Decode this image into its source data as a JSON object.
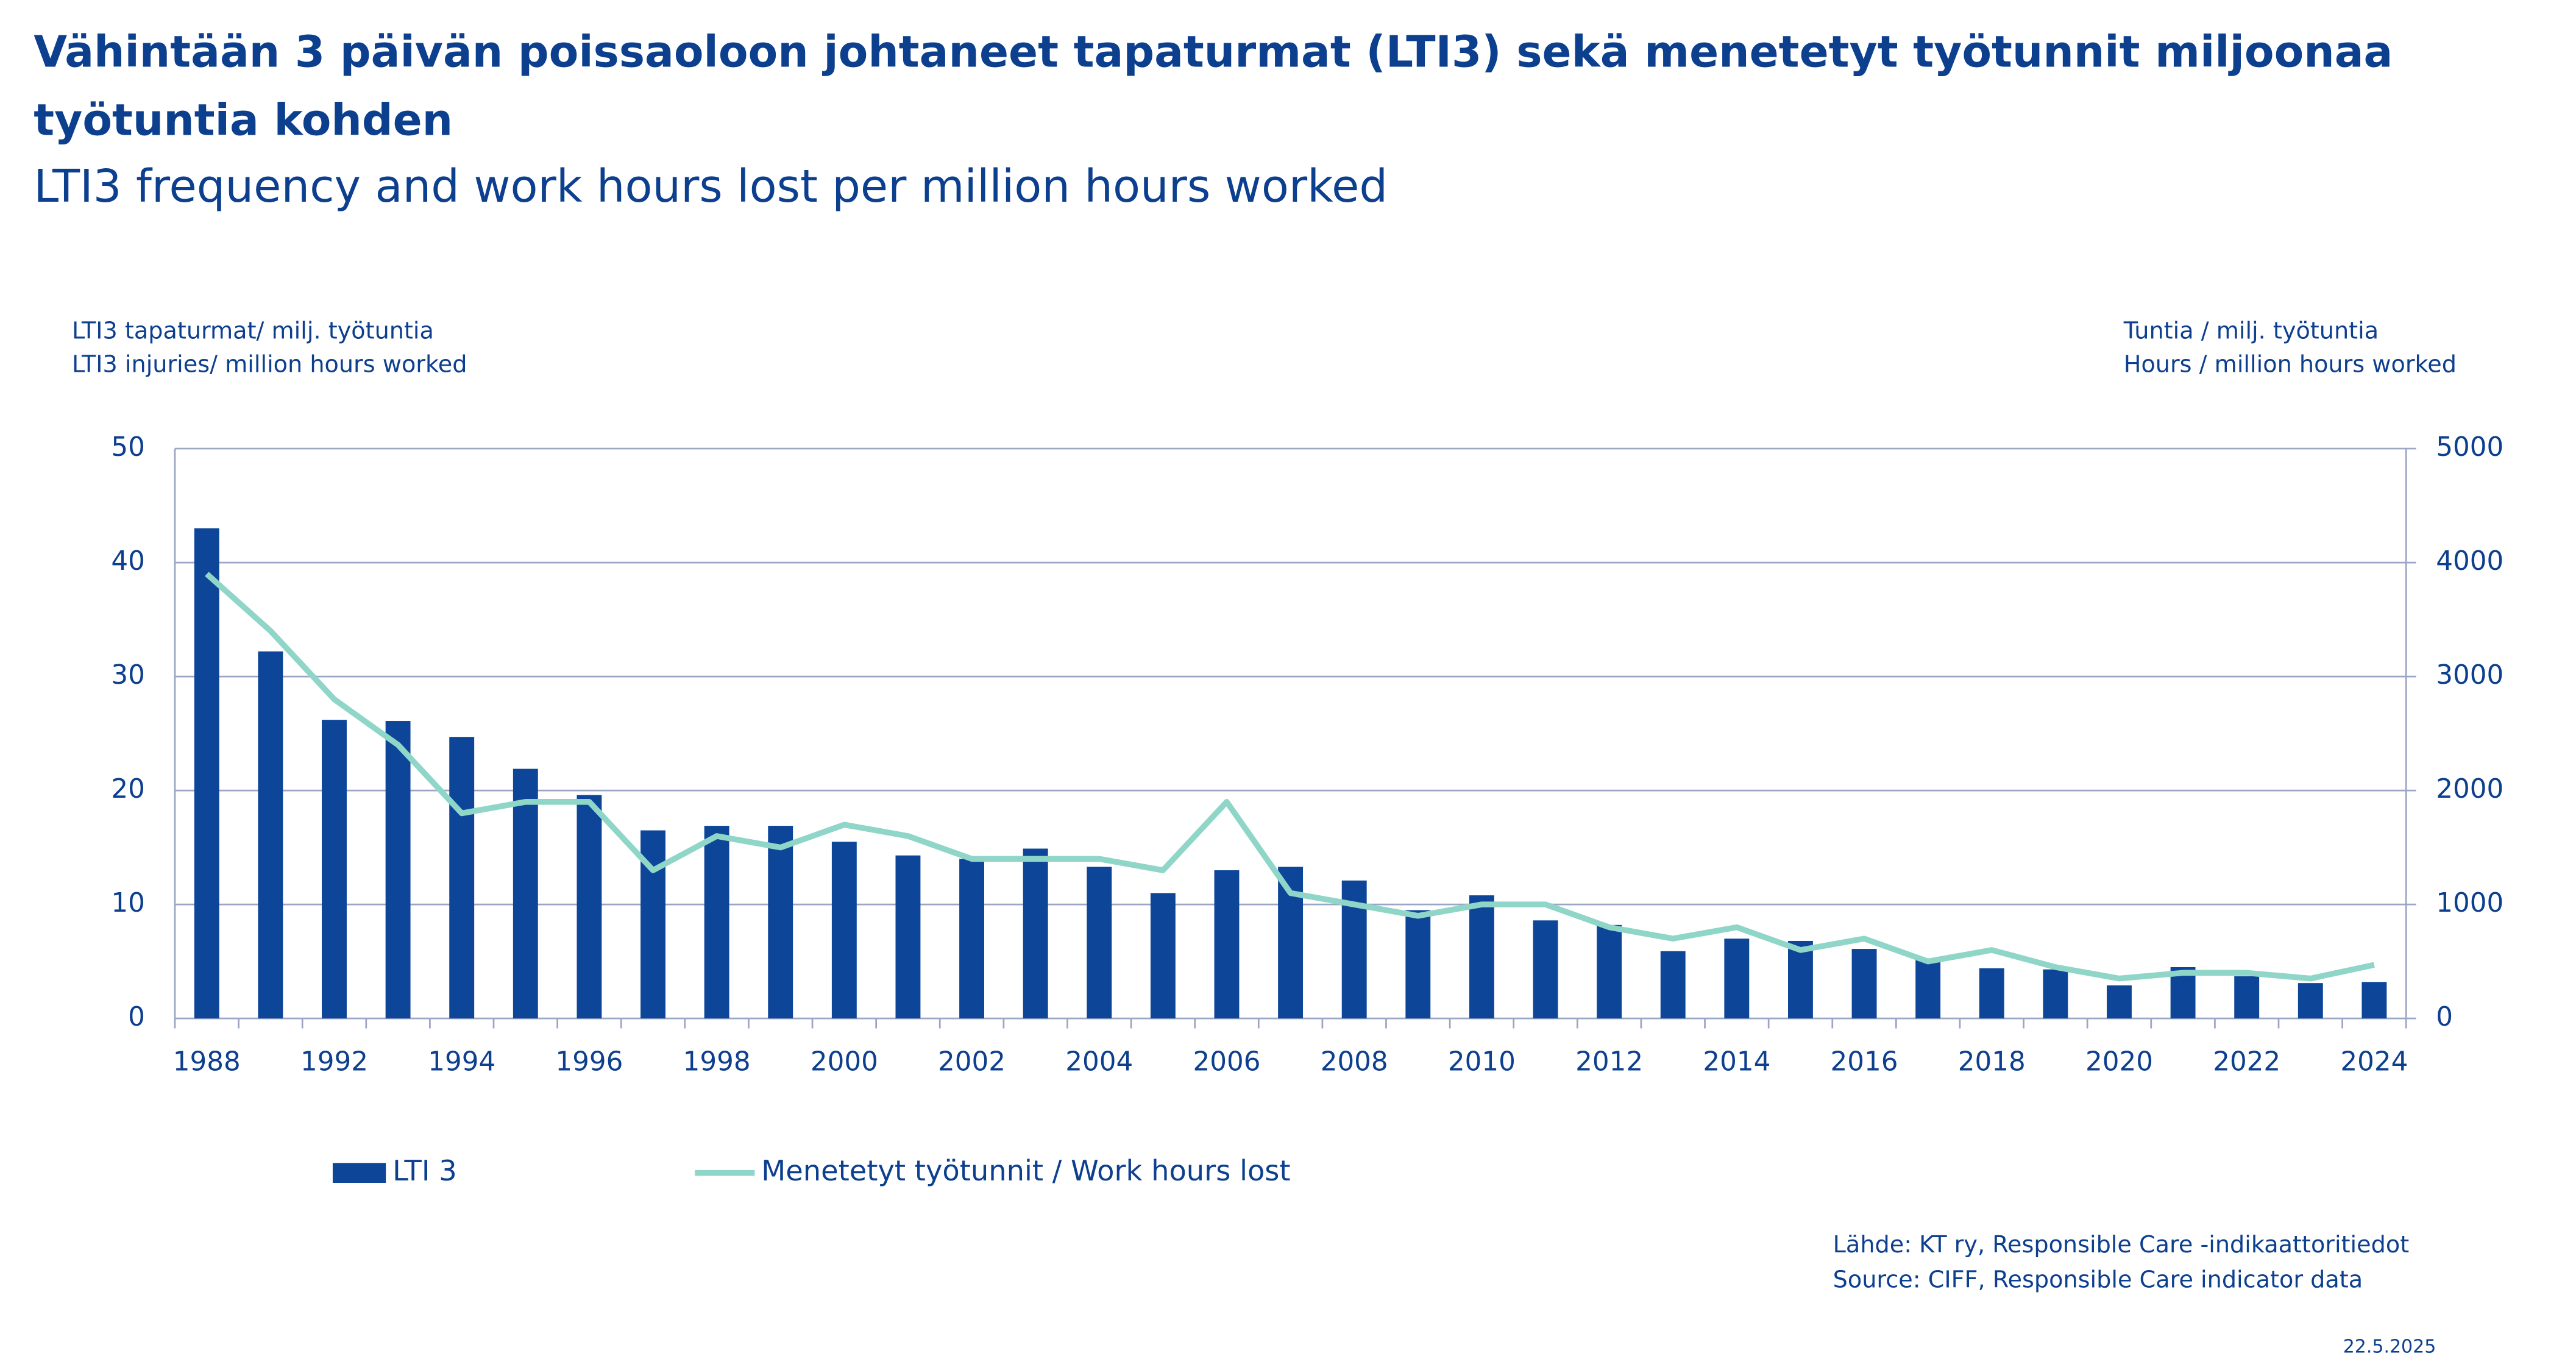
{
  "chart_data": {
    "type": "bar-line",
    "title": [
      "Vähintään 3 päivän poissaoloon johtaneet tapaturmat (LTI3) sekä menetetyt työtunnit miljoonaa",
      "työtuntia kohden"
    ],
    "subtitle": "LTI3 frequency and work hours lost per million hours worked",
    "ylabel": [
      "LTI3 tapaturmat/ milj. työtuntia",
      "LTI3 injuries/ million hours worked"
    ],
    "y2label": [
      "Tuntia / milj. työtuntia",
      "Hours / million hours worked"
    ],
    "categories": [
      "1988",
      null,
      "1992",
      null,
      "1994",
      null,
      "1996",
      null,
      "1998",
      null,
      "2000",
      null,
      "2002",
      null,
      "2004",
      null,
      "2006",
      null,
      "2008",
      null,
      "2010",
      null,
      "2012",
      null,
      "2014",
      null,
      "2016",
      null,
      "2018",
      null,
      "2020",
      null,
      "2022",
      null,
      "2024"
    ],
    "series": [
      {
        "name": "LTI 3",
        "type": "bar",
        "color": "#0d4599",
        "values": [
          43,
          32.2,
          26.2,
          26.1,
          24.7,
          21.9,
          19.6,
          16.5,
          16.9,
          16.9,
          15.5,
          14.3,
          14,
          14.9,
          13.3,
          11,
          13,
          13.3,
          12.1,
          9.5,
          10.8,
          8.6,
          8.2,
          5.9,
          7,
          6.8,
          6.1,
          5.2,
          4.4,
          4.3,
          2.9,
          4.5,
          3.7,
          3.1,
          3.2
        ]
      },
      {
        "name": "Menetetyt työtunnit / Work hours lost",
        "type": "line",
        "axis": "y2",
        "color": "#8fd6c8",
        "values": [
          3900,
          3400,
          2800,
          2400,
          1800,
          1900,
          1900,
          1300,
          1600,
          1500,
          1700,
          1600,
          1400,
          1400,
          1400,
          1300,
          1900,
          1100,
          1000,
          900,
          1000,
          1000,
          800,
          700,
          800,
          600,
          700,
          500,
          600,
          450,
          350,
          400,
          400,
          350,
          470
        ]
      }
    ],
    "ylim": [
      0,
      50
    ],
    "yticks": [
      0,
      10,
      20,
      30,
      40,
      50
    ],
    "y2lim": [
      0,
      5000
    ],
    "y2ticks": [
      0,
      1000,
      2000,
      3000,
      4000,
      5000
    ],
    "grid": true,
    "source": [
      "Lähde: KT ry, Responsible Care -indikaattoritiedot",
      "Source: CIFF, Responsible Care indicator data"
    ],
    "date": "22.5.2025"
  }
}
